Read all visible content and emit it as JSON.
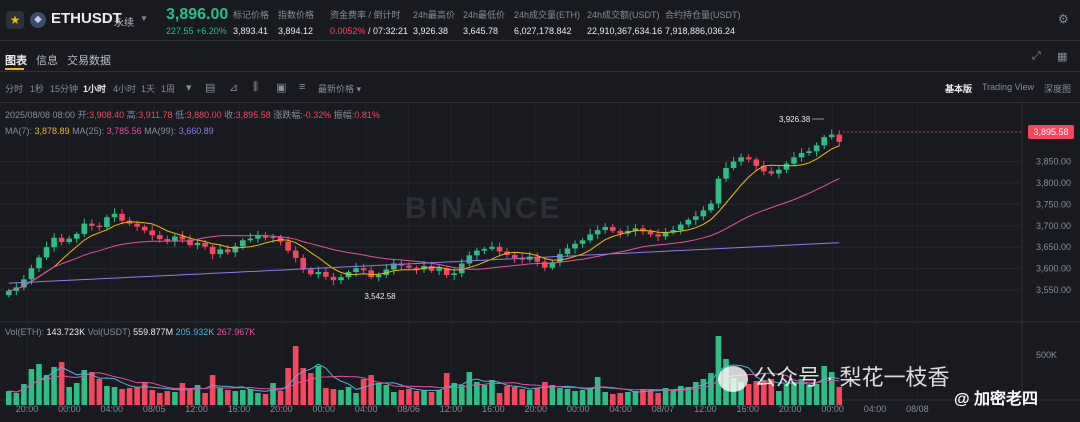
{
  "header": {
    "symbol": "ETHUSDT",
    "contract": "永续",
    "last_price": "3,896.00",
    "change": "227.55 +6.20%",
    "stats": [
      {
        "label": "标记价格",
        "value": "3,893.41"
      },
      {
        "label": "指数价格",
        "value": "3,894.12"
      },
      {
        "label": "资金费率 / 倒计时",
        "value_rate": "0.0052%",
        "value_countdown": " / 07:32:21"
      },
      {
        "label": "24h最高价",
        "value": "3,926.38"
      },
      {
        "label": "24h最低价",
        "value": "3,645.78"
      },
      {
        "label": "24h成交量(ETH)",
        "value": "6,027,178.842"
      },
      {
        "label": "24h成交额(USDT)",
        "value": "22,910,367,634.16"
      },
      {
        "label": "合约持仓量(USDT)",
        "value": "7,918,886,036.24"
      }
    ],
    "colors": {
      "up": "#2ebd85",
      "down": "#f6465d",
      "accent": "#f0b90b"
    }
  },
  "tabs": [
    "图表",
    "信息",
    "交易数据"
  ],
  "toolbar": {
    "timeframes": [
      "分时",
      "1秒",
      "15分钟",
      "1小时",
      "4小时",
      "1天",
      "1周"
    ],
    "active_timeframe": "1小时",
    "price_type": "最新价格",
    "views": [
      "基本版",
      "Trading View",
      "深度图"
    ],
    "active_view": "基本版"
  },
  "legend": {
    "date": "2025/08/08 08:00",
    "open_label": "开:",
    "open": "3,908.40",
    "high_label": "高:",
    "high": "3,911.78",
    "low_label": "低:",
    "low": "3,880.00",
    "close_label": "收:",
    "close": "3,895.58",
    "chg_label": "涨跌幅:",
    "chg": "-0.32%",
    "amp_label": "振幅:",
    "amp": "0.81%",
    "ma7_label": "MA(7):",
    "ma7": "3,878.89",
    "ma25_label": "MA(25):",
    "ma25": "3,785.56",
    "ma99_label": "MA(99):",
    "ma99": "3,660.89",
    "vol_eth_label": "Vol(ETH):",
    "vol_eth": "143.723K",
    "vol_usdt_label": "Vol(USDT)",
    "vol_usdt": "559.877M",
    "vol_ma1": "205.932K",
    "vol_ma2": "267.967K"
  },
  "watermark": "BINANCE",
  "overlay_watermark": "公众号 · 梨花一枝香",
  "credit": "@ 加密老四",
  "chart_data": {
    "type": "candlestick",
    "interval": "1h",
    "x_ticks": [
      "20:00",
      "00:00",
      "04:00",
      "08/05",
      "12:00",
      "16:00",
      "20:00",
      "00:00",
      "04:00",
      "08/06",
      "12:00",
      "16:00",
      "20:00",
      "00:00",
      "04:00",
      "08/07",
      "12:00",
      "16:00",
      "20:00",
      "00:00",
      "04:00",
      "08/08"
    ],
    "y_ticks": [
      3550,
      3600,
      3650,
      3700,
      3750,
      3800,
      3850
    ],
    "ylim": [
      3515,
      3905
    ],
    "annotations": [
      {
        "text": "3,926.38",
        "value": 3926.38
      },
      {
        "text": "3,542.58",
        "value": 3542.58
      }
    ],
    "current_price": "3,895.58",
    "volume_axis_label": "500K",
    "volume_ylim": [
      0,
      700
    ],
    "ma_colors": {
      "ma7": "#f0b90b",
      "ma25": "#e84fa0",
      "ma99": "#8e7cf0"
    },
    "closes": [
      3548,
      3556,
      3575,
      3601,
      3626,
      3650,
      3672,
      3662,
      3670,
      3681,
      3705,
      3700,
      3697,
      3720,
      3728,
      3712,
      3705,
      3698,
      3689,
      3678,
      3669,
      3663,
      3675,
      3668,
      3655,
      3660,
      3651,
      3634,
      3645,
      3638,
      3652,
      3666,
      3670,
      3677,
      3672,
      3674,
      3663,
      3642,
      3625,
      3598,
      3587,
      3592,
      3581,
      3573,
      3580,
      3592,
      3601,
      3596,
      3580,
      3585,
      3598,
      3612,
      3607,
      3602,
      3598,
      3606,
      3595,
      3601,
      3585,
      3589,
      3612,
      3631,
      3642,
      3646,
      3651,
      3640,
      3632,
      3625,
      3621,
      3628,
      3616,
      3602,
      3615,
      3634,
      3647,
      3658,
      3666,
      3680,
      3690,
      3697,
      3688,
      3682,
      3688,
      3694,
      3687,
      3680,
      3675,
      3684,
      3690,
      3703,
      3714,
      3722,
      3736,
      3752,
      3810,
      3835,
      3850,
      3860,
      3855,
      3840,
      3827,
      3822,
      3831,
      3845,
      3860,
      3870,
      3874,
      3888,
      3907,
      3913,
      3896
    ],
    "volumes_k": [
      140,
      120,
      210,
      360,
      410,
      300,
      380,
      430,
      180,
      220,
      350,
      330,
      260,
      190,
      180,
      160,
      170,
      180,
      230,
      150,
      120,
      140,
      130,
      220,
      150,
      200,
      120,
      300,
      170,
      150,
      140,
      150,
      160,
      120,
      110,
      220,
      140,
      370,
      590,
      370,
      320,
      390,
      170,
      160,
      150,
      180,
      120,
      260,
      300,
      220,
      200,
      130,
      150,
      160,
      140,
      150,
      130,
      150,
      320,
      220,
      200,
      330,
      230,
      200,
      250,
      120,
      190,
      180,
      160,
      150,
      170,
      230,
      200,
      170,
      160,
      140,
      150,
      170,
      280,
      130,
      110,
      120,
      130,
      140,
      160,
      160,
      120,
      170,
      150,
      190,
      180,
      230,
      260,
      320,
      690,
      460,
      270,
      230,
      210,
      240,
      250,
      260,
      140,
      210,
      230,
      260,
      200,
      210,
      390,
      330,
      180
    ]
  }
}
